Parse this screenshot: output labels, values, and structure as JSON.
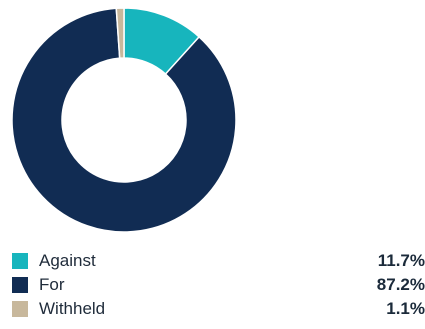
{
  "chart_data": {
    "type": "pie",
    "title": "",
    "donut": true,
    "categories": [
      "Against",
      "For",
      "Withheld"
    ],
    "values": [
      11.7,
      87.2,
      1.1
    ],
    "value_labels": [
      "11.7%",
      "87.2%",
      "1.1%"
    ],
    "colors": [
      "#17b5bd",
      "#112c53",
      "#c8b89c"
    ],
    "legend_position": "bottom"
  }
}
